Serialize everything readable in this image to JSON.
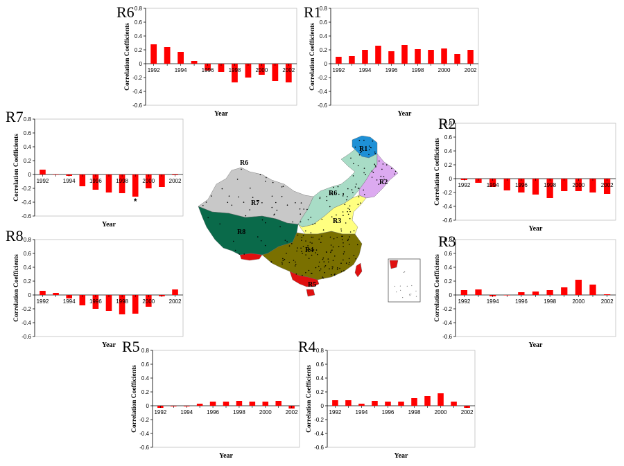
{
  "map": {
    "region_labels": [
      "R1",
      "R2",
      "R3",
      "R4",
      "R5",
      "R6",
      "R7",
      "R8",
      "R6"
    ],
    "colors": {
      "R1": "#1e90d6",
      "R2": "#dcaaf0",
      "R3": "#ffff80",
      "R4": "#7a7000",
      "R5": "#e01010",
      "R6": "#a8dcc6",
      "R7": "#c8c8c8",
      "R8": "#0a6a4a",
      "tibet_south": "#e01010"
    }
  },
  "chart_data": [
    {
      "id": "R6",
      "type": "bar",
      "label": "R6",
      "x": [
        1992,
        1993,
        1994,
        1995,
        1996,
        1997,
        1998,
        1999,
        2000,
        2001,
        2002
      ],
      "values": [
        0.28,
        0.24,
        0.17,
        0.04,
        -0.1,
        -0.12,
        -0.27,
        -0.2,
        -0.16,
        -0.25,
        -0.27
      ],
      "ylim": [
        -0.6,
        0.8
      ],
      "yticks": [
        "0.8",
        "0.6",
        "0.4",
        "0.2",
        "0",
        "-0.2",
        "-0.4",
        "-0.6"
      ],
      "xticks": [
        "1992",
        "1994",
        "1996",
        "1998",
        "2000",
        "2002"
      ],
      "xlabel": "Year",
      "ylabel": "Correlation Coefficients",
      "bar_color": "#ff0000",
      "annotations": []
    },
    {
      "id": "R1",
      "type": "bar",
      "label": "R1",
      "x": [
        1992,
        1993,
        1994,
        1995,
        1996,
        1997,
        1998,
        1999,
        2000,
        2001,
        2002
      ],
      "values": [
        0.1,
        0.11,
        0.2,
        0.26,
        0.18,
        0.27,
        0.21,
        0.2,
        0.22,
        0.14,
        0.2
      ],
      "ylim": [
        -0.6,
        0.8
      ],
      "yticks": [
        "0.8",
        "0.6",
        "0.4",
        "0.2",
        "0",
        "-0.2",
        "-0.4",
        "-0.6"
      ],
      "xticks": [
        "1992",
        "1994",
        "1996",
        "1998",
        "2000",
        "2002"
      ],
      "xlabel": "Year",
      "ylabel": "Correlation Coefficients",
      "bar_color": "#ff0000",
      "annotations": []
    },
    {
      "id": "R7",
      "type": "bar",
      "label": "R7",
      "x": [
        1992,
        1993,
        1994,
        1995,
        1996,
        1997,
        1998,
        1999,
        2000,
        2001,
        2002
      ],
      "values": [
        0.07,
        0.0,
        -0.02,
        -0.17,
        -0.22,
        -0.26,
        -0.27,
        -0.32,
        -0.2,
        -0.18,
        -0.01
      ],
      "ylim": [
        -0.6,
        0.8
      ],
      "yticks": [
        "0.8",
        "0.6",
        "0.4",
        "0.2",
        "0",
        "-0.2",
        "-0.4",
        "-0.6"
      ],
      "xticks": [
        "1992",
        "1994",
        "1996",
        "1998",
        "2000",
        "2002"
      ],
      "xlabel": "Year",
      "ylabel": "Correlation Coefficients",
      "bar_color": "#ff0000",
      "annotations": [
        {
          "text": "*",
          "x": 1999
        }
      ]
    },
    {
      "id": "R2",
      "type": "bar",
      "label": "R2",
      "x": [
        1992,
        1993,
        1994,
        1995,
        1996,
        1997,
        1998,
        1999,
        2000,
        2001,
        2002
      ],
      "values": [
        -0.02,
        -0.06,
        -0.12,
        -0.17,
        -0.2,
        -0.23,
        -0.28,
        -0.18,
        -0.18,
        -0.2,
        -0.22
      ],
      "ylim": [
        -0.6,
        0.8
      ],
      "yticks": [
        "0.8",
        "0.6",
        "0.4",
        "0.2",
        "0",
        "-0.2",
        "-0.4",
        "-0.6"
      ],
      "xticks": [
        "1992",
        "1994",
        "1996",
        "1998",
        "2000",
        "2002"
      ],
      "xlabel": "Year",
      "ylabel": "Correlation Coefficients",
      "bar_color": "#ff0000",
      "annotations": []
    },
    {
      "id": "R8",
      "type": "bar",
      "label": "R8",
      "x": [
        1992,
        1993,
        1994,
        1995,
        1996,
        1997,
        1998,
        1999,
        2000,
        2001,
        2002
      ],
      "values": [
        0.06,
        0.03,
        -0.05,
        -0.15,
        -0.2,
        -0.23,
        -0.28,
        -0.27,
        -0.17,
        -0.02,
        0.08
      ],
      "ylim": [
        -0.6,
        0.8
      ],
      "yticks": [
        "0.8",
        "0.6",
        "0.4",
        "0.2",
        "0",
        "-0.2",
        "-0.4",
        "-0.6"
      ],
      "xticks": [
        "1992",
        "1994",
        "1996",
        "1998",
        "2000",
        "2002"
      ],
      "xlabel": "Year",
      "ylabel": "Correlation Coefficients",
      "bar_color": "#ff0000",
      "annotations": []
    },
    {
      "id": "R3",
      "type": "bar",
      "label": "R3",
      "x": [
        1992,
        1993,
        1994,
        1995,
        1996,
        1997,
        1998,
        1999,
        2000,
        2001,
        2002
      ],
      "values": [
        0.07,
        0.08,
        -0.02,
        0.0,
        0.04,
        0.05,
        0.07,
        0.11,
        0.22,
        0.15,
        0.01
      ],
      "ylim": [
        -0.6,
        0.8
      ],
      "yticks": [
        "0.8",
        "0.6",
        "0.4",
        "0.2",
        "0",
        "-0.2",
        "-0.4",
        "-0.6"
      ],
      "xticks": [
        "1992",
        "1994",
        "1996",
        "1998",
        "2000",
        "2002"
      ],
      "xlabel": "Year",
      "ylabel": "Correlation Coefficients",
      "bar_color": "#ff0000",
      "annotations": []
    },
    {
      "id": "R5",
      "type": "bar",
      "label": "R5",
      "x": [
        1992,
        1993,
        1994,
        1995,
        1996,
        1997,
        1998,
        1999,
        2000,
        2001,
        2002
      ],
      "values": [
        -0.03,
        -0.01,
        -0.01,
        0.03,
        0.06,
        0.06,
        0.07,
        0.06,
        0.06,
        0.07,
        -0.04
      ],
      "ylim": [
        -0.6,
        0.8
      ],
      "yticks": [
        "0.8",
        "0.6",
        "0.4",
        "0.2",
        "0",
        "-0.2",
        "-0.4",
        "-0.6"
      ],
      "xticks": [
        "1992",
        "1994",
        "1996",
        "1998",
        "2000",
        "2002"
      ],
      "xlabel": "Year",
      "ylabel": "Correlation Coefficients",
      "bar_color": "#ff0000",
      "annotations": []
    },
    {
      "id": "R4",
      "type": "bar",
      "label": "R4",
      "x": [
        1992,
        1993,
        1994,
        1995,
        1996,
        1997,
        1998,
        1999,
        2000,
        2001,
        2002
      ],
      "values": [
        0.08,
        0.08,
        0.03,
        0.07,
        0.06,
        0.06,
        0.11,
        0.14,
        0.18,
        0.06,
        -0.03
      ],
      "ylim": [
        -0.6,
        0.8
      ],
      "yticks": [
        "0.8",
        "0.6",
        "0.4",
        "0.2",
        "0",
        "-0.2",
        "-0.4",
        "-0.6"
      ],
      "xticks": [
        "1992",
        "1994",
        "1996",
        "1998",
        "2000",
        "2002"
      ],
      "xlabel": "Year",
      "ylabel": "Correlation Coefficients",
      "bar_color": "#ff0000",
      "annotations": []
    }
  ]
}
